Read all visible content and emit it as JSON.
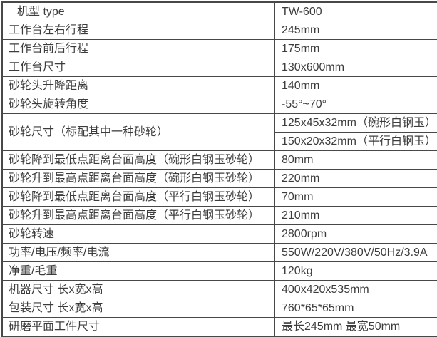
{
  "table": {
    "rows": [
      {
        "label": "机型 type",
        "value": "TW-600"
      },
      {
        "label": "工作台左右行程",
        "value": "245mm"
      },
      {
        "label": "工作台前后行程",
        "value": "175mm"
      },
      {
        "label": "工作台尺寸",
        "value": "130x600mm"
      },
      {
        "label": "砂轮头升降距离",
        "value": "140mm"
      },
      {
        "label": "砂轮头旋转角度",
        "value": "-55°~70°"
      },
      {
        "label": "砂轮尺寸（标配其中一种砂轮）",
        "values": [
          "125x45x32mm（碗形白钢玉）",
          "150x20x32mm（平行白钢玉）"
        ]
      },
      {
        "label": "砂轮降到最低点距离台面高度（碗形白钢玉砂轮）",
        "value": "80mm"
      },
      {
        "label": "砂轮升到最高点距离台面高度（碗形白钢玉砂轮）",
        "value": "220mm"
      },
      {
        "label": "砂轮降到最低点距离台面高度（平行白钢玉砂轮）",
        "value": "70mm"
      },
      {
        "label": "砂轮升到最高点距离台面高度（平行白钢玉砂轮）",
        "value": "210mm"
      },
      {
        "label": "砂轮转速",
        "value": "2800rpm"
      },
      {
        "label": "功率/电压/频率/电流",
        "value": "550W/220V/380V/50Hz/3.9A"
      },
      {
        "label": "净重/毛重",
        "value": "120kg"
      },
      {
        "label": "机器尺寸 长x宽x高",
        "value": "400x420x535mm"
      },
      {
        "label": "包装尺寸 长x宽x高",
        "value": "760*65*65mm"
      },
      {
        "label": "研磨平面工件尺寸",
        "value": "最长245mm 最宽50mm"
      }
    ],
    "colors": {
      "text": "#3c3c3c",
      "border": "#484848",
      "background": "#ffffff"
    }
  }
}
